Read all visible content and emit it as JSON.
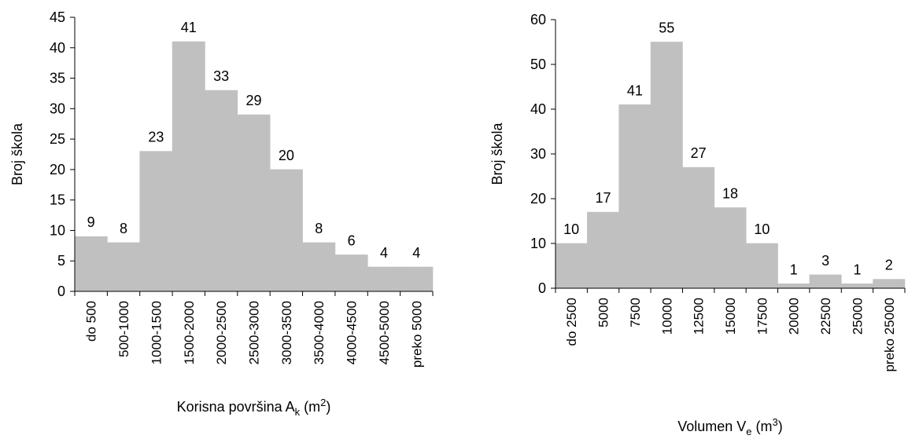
{
  "colors": {
    "bar": "#c0c0c0",
    "axis": "#000000"
  },
  "chart_data": [
    {
      "type": "bar",
      "categories": [
        "do 500",
        "500-1000",
        "1000-1500",
        "1500-2000",
        "2000-2500",
        "2500-3000",
        "3000-3500",
        "3500-4000",
        "4000-4500",
        "4500-5000",
        "preko 5000"
      ],
      "values": [
        9,
        8,
        23,
        41,
        33,
        29,
        20,
        8,
        6,
        4,
        4
      ],
      "title": "",
      "xlabel": "Korisna površina A",
      "xlabel_sub": "k",
      "xlabel_unit_open": " (m",
      "xlabel_sup": "2",
      "xlabel_unit_close": ")",
      "ylabel": "Broj škola",
      "ylim": [
        0,
        45
      ],
      "yticks": [
        0,
        5,
        10,
        15,
        20,
        25,
        30,
        35,
        40,
        45
      ],
      "grid": false,
      "legend": "none"
    },
    {
      "type": "bar",
      "categories": [
        "do 2500",
        "5000",
        "7500",
        "10000",
        "12500",
        "15000",
        "17500",
        "20000",
        "22500",
        "25000",
        "preko 25000"
      ],
      "values": [
        10,
        17,
        41,
        55,
        27,
        18,
        10,
        1,
        3,
        1,
        2
      ],
      "title": "",
      "xlabel": "Volumen V",
      "xlabel_sub": "e",
      "xlabel_unit_open": " (m",
      "xlabel_sup": "3",
      "xlabel_unit_close": ")",
      "ylabel": "Broj škola",
      "ylim": [
        0,
        60
      ],
      "yticks": [
        0,
        10,
        20,
        30,
        40,
        50,
        60
      ],
      "grid": false,
      "legend": "none"
    }
  ]
}
